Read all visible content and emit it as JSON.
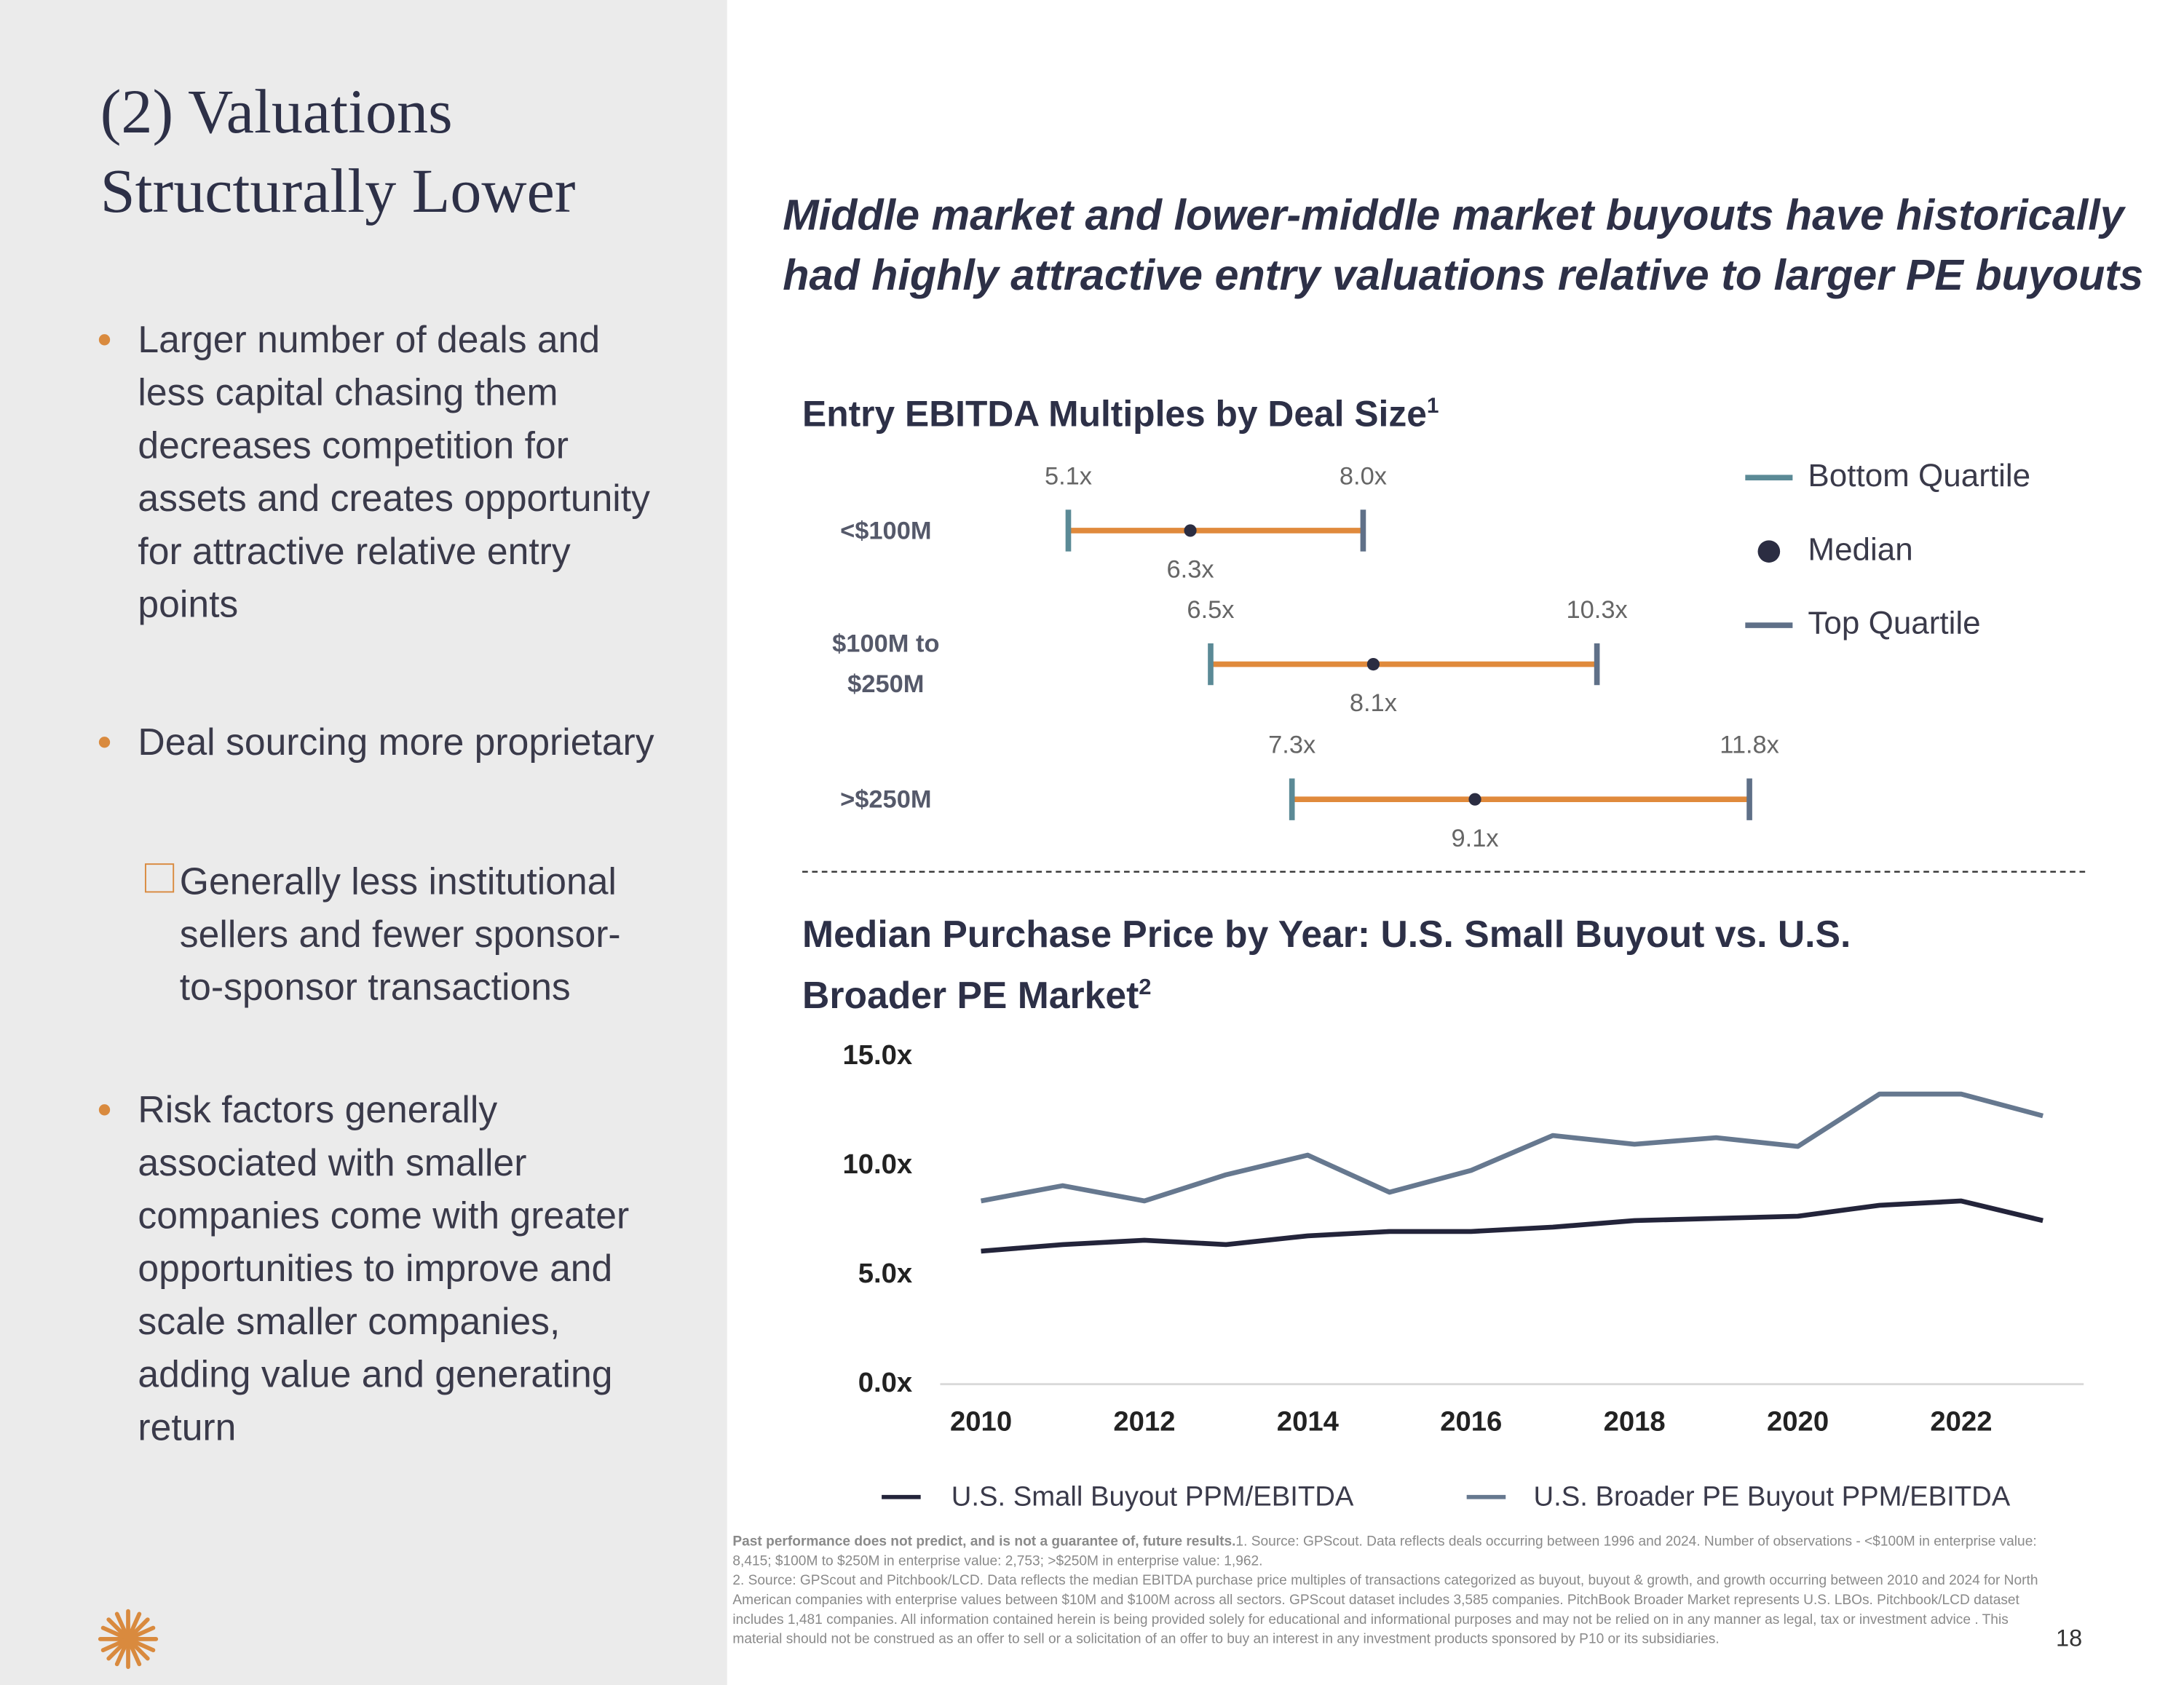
{
  "title": "(2) Valuations Structurally Lower",
  "bullets": [
    {
      "text": "Larger number of deals and less capital chasing them decreases competition for assets and creates opportunity for attractive relative entry points"
    },
    {
      "text": "Deal sourcing more proprietary",
      "sub": "Generally less institutional sellers and fewer sponsor-to-sponsor transactions"
    },
    {
      "text": "Risk factors generally associated with smaller companies come with greater opportunities to improve and scale smaller companies, adding value and generating return"
    }
  ],
  "headline": "Middle market and lower-middle market buyouts have historically had highly attractive entry valuations relative to larger PE buyouts",
  "chart_data": [
    {
      "type": "range",
      "title": "Entry EBITDA Multiples by Deal Size",
      "title_superscript": "1",
      "categories": [
        "<$100M",
        "$100M to $250M",
        ">$250M"
      ],
      "series": [
        {
          "name": "Bottom Quartile",
          "color": "#5b8a96",
          "values": [
            5.1,
            6.5,
            7.3
          ],
          "value_labels": [
            "5.1x",
            "6.5x",
            "7.3x"
          ]
        },
        {
          "name": "Median",
          "color": "#2b2d42",
          "values": [
            6.3,
            8.1,
            9.1
          ],
          "value_labels": [
            "6.3x",
            "8.1x",
            "9.1x"
          ]
        },
        {
          "name": "Top Quartile",
          "color": "#5f7088",
          "values": [
            8.0,
            10.3,
            11.8
          ],
          "value_labels": [
            "8.0x",
            "10.3x",
            "11.8x"
          ]
        }
      ],
      "range_color": "#e08a3c",
      "legend": "right"
    },
    {
      "type": "line",
      "title": "Median Purchase Price by Year: U.S. Small Buyout vs. U.S. Broader PE Market",
      "title_superscript": "2",
      "x": [
        2010,
        2011,
        2012,
        2013,
        2014,
        2015,
        2016,
        2017,
        2018,
        2019,
        2020,
        2021,
        2022,
        2023
      ],
      "xlim": [
        2009.5,
        2023.5
      ],
      "xticks": [
        2010,
        2012,
        2014,
        2016,
        2018,
        2020,
        2022
      ],
      "ylim": [
        0,
        15
      ],
      "yticks": [
        {
          "value": 0,
          "label": "0.0x"
        },
        {
          "value": 5,
          "label": "5.0x"
        },
        {
          "value": 10,
          "label": "10.0x"
        },
        {
          "value": 15,
          "label": "15.0x"
        }
      ],
      "series": [
        {
          "name": "U.S. Small Buyout PPM/EBITDA",
          "color": "#23243a",
          "values": [
            6.1,
            6.4,
            6.6,
            6.4,
            6.8,
            7.0,
            7.0,
            7.2,
            7.5,
            7.6,
            7.7,
            8.2,
            8.4,
            7.5
          ]
        },
        {
          "name": "U.S. Broader PE Buyout PPM/EBITDA",
          "color": "#66788f",
          "values": [
            8.4,
            9.1,
            8.4,
            9.6,
            10.5,
            8.8,
            9.8,
            11.4,
            11.0,
            11.3,
            10.9,
            13.3,
            13.3,
            12.3
          ]
        }
      ],
      "legend": "bottom",
      "grid": false
    }
  ],
  "footnote": {
    "lead": "Past performance does not predict, and is not a guarantee of, future results.",
    "notes": [
      "1. Source: GPScout. Data reflects deals occurring between 1996 and 2024. Number of observations - <$100M in enterprise value: 8,415; $100M to $250M in enterprise value: 2,753; >$250M in enterprise value: 1,962.",
      "2. Source: GPScout and Pitchbook/LCD. Data reflects the median EBITDA purchase price multiples of transactions categorized as buyout, buyout & growth, and growth occurring between 2010 and 2024 for North American companies with enterprise values between $10M and $100M across all sectors. GPScout dataset includes 3,585 companies. PitchBook Broader Market represents U.S. LBOs. Pitchbook/LCD dataset includes 1,481 companies. All information contained herein is being provided solely for educational and informational purposes and may not be relied on in any manner as legal, tax or investment advice . This material should not be construed as an offer to sell or a solicitation of an offer to buy an interest in any investment products sponsored by P10 or its subsidiaries."
    ]
  },
  "page_number": "18"
}
